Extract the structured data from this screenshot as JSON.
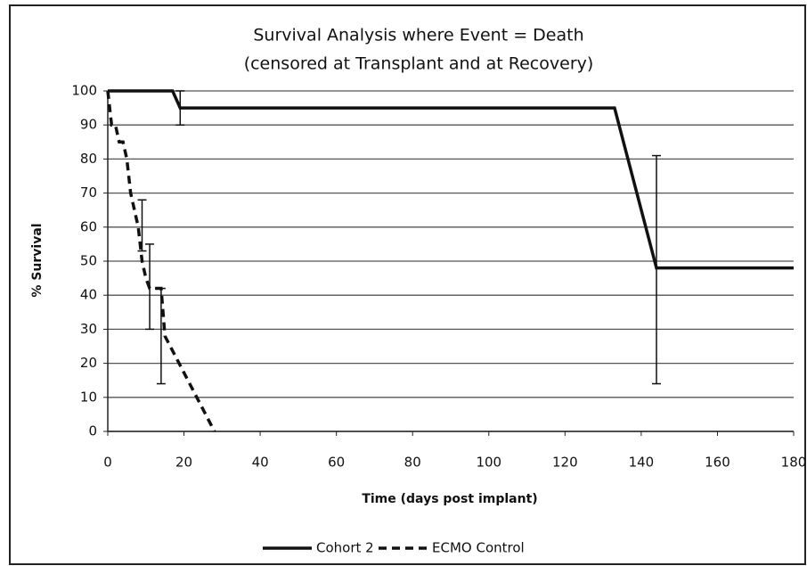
{
  "chart_data": {
    "type": "line",
    "title": "Survival Analysis where Event = Death",
    "subtitle": "(censored at Transplant and at Recovery)",
    "x_label": "Time (days post implant)",
    "y_label": "% Survival",
    "xlim": [
      0,
      180
    ],
    "xticks": [
      0,
      20,
      40,
      60,
      80,
      100,
      120,
      140,
      160,
      180
    ],
    "ylim": [
      0,
      100
    ],
    "yticks": [
      0,
      10,
      20,
      30,
      40,
      50,
      60,
      70,
      80,
      90,
      100
    ],
    "grid": true,
    "legend": "bottom",
    "series": [
      {
        "name": "Cohort 2",
        "color": "#111111",
        "dash": false,
        "x": [
          0,
          17,
          19,
          133,
          144,
          180
        ],
        "values": [
          100,
          100,
          95,
          95,
          48,
          48
        ],
        "error_bars": [
          {
            "x": 19,
            "low": 90,
            "high": 100
          },
          {
            "x": 144,
            "low": 14,
            "high": 81
          }
        ]
      },
      {
        "name": "ECMO Control",
        "color": "#111111",
        "dash": true,
        "x": [
          0,
          1,
          2,
          3,
          4,
          5,
          6,
          7,
          8,
          9,
          10,
          11,
          12,
          14,
          15,
          28
        ],
        "values": [
          100,
          90,
          90,
          85,
          85,
          80,
          70,
          65,
          60,
          50,
          45,
          42,
          42,
          42,
          28,
          0
        ],
        "error_bars": [
          {
            "x": 9,
            "low": 53,
            "high": 68
          },
          {
            "x": 11,
            "low": 30,
            "high": 55
          },
          {
            "x": 14,
            "low": 14,
            "high": 42
          }
        ]
      }
    ]
  }
}
